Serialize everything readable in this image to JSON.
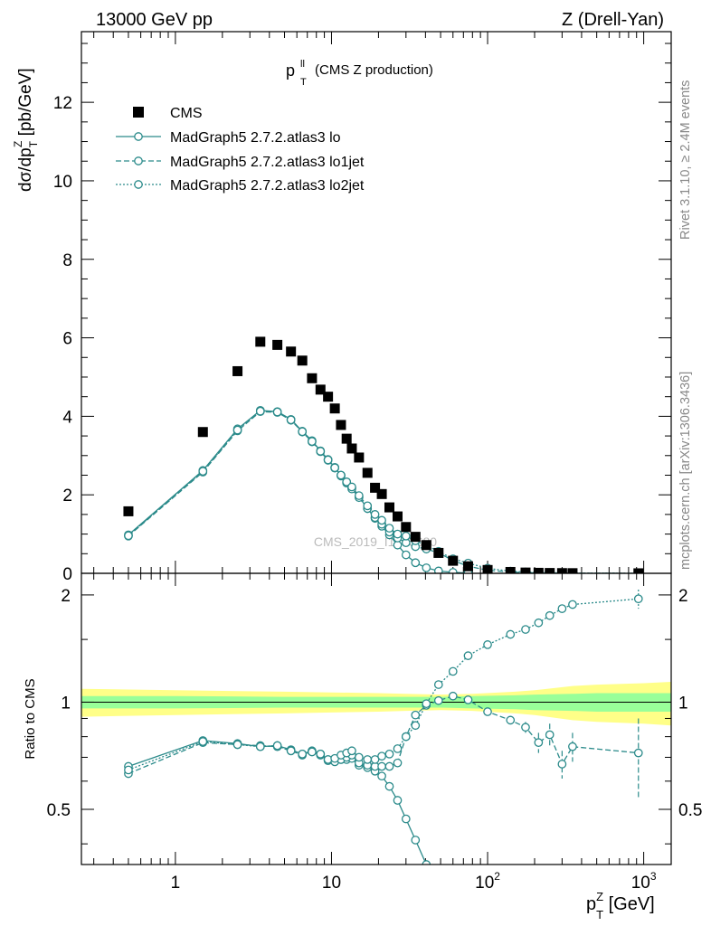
{
  "header": {
    "energy": "13000 GeV pp",
    "process": "Z (Drell-Yan)",
    "rivet": "Rivet 3.1.10, ≥ 2.4M events",
    "source": "mcplots.cern.ch [arXiv:1306.3436]",
    "watermark": "CMS_2019_I1753680"
  },
  "colors": {
    "data": "#000000",
    "mc": "#2a8a8a",
    "band_outer": "#ffff88",
    "band_inner": "#99ff99"
  },
  "chart_data": [
    {
      "type": "scatter",
      "title": "p_T^ll (CMS Z production)",
      "title_main": "p",
      "title_sup": "ll",
      "title_sub": "T",
      "title_rest": "(CMS Z production)",
      "ylabel": "dσ/dp_T^Z [pb/GeV]",
      "xscale": "log",
      "xlim": [
        0.25,
        1500
      ],
      "ylim": [
        0,
        13.8
      ],
      "yticks": [
        0,
        2,
        4,
        6,
        8,
        10,
        12
      ],
      "legend_position": "top-left",
      "series": [
        {
          "name": "CMS",
          "style": "square",
          "x": [
            0.5,
            1.5,
            2.5,
            3.5,
            4.5,
            5.5,
            6.5,
            7.5,
            8.5,
            9.5,
            10.5,
            11.5,
            12.5,
            13.5,
            15,
            17,
            19,
            21,
            23.5,
            26.5,
            30,
            34.5,
            40.5,
            48.5,
            60,
            75,
            100,
            140,
            175,
            212,
            250,
            300,
            350,
            925
          ],
          "y": [
            1.58,
            3.6,
            5.15,
            5.9,
            5.82,
            5.65,
            5.42,
            4.97,
            4.68,
            4.5,
            4.2,
            3.78,
            3.43,
            3.18,
            2.95,
            2.56,
            2.18,
            2.02,
            1.68,
            1.45,
            1.18,
            0.93,
            0.72,
            0.52,
            0.32,
            0.18,
            0.085,
            0.035,
            0.02,
            0.013,
            0.009,
            0.006,
            0.004,
            0.0008
          ]
        },
        {
          "name": "MadGraph5 2.7.2.atlas3 lo",
          "style": "solid",
          "x": [
            0.5,
            1.5,
            2.5,
            3.5,
            4.5,
            5.5,
            6.5,
            7.5,
            8.5,
            9.5,
            10.5,
            11.5,
            12.5,
            13.5,
            15,
            17,
            19,
            21,
            23.5,
            26.5,
            30,
            34.5,
            40.5,
            48.5,
            60,
            75
          ],
          "y": [
            0.98,
            2.62,
            3.68,
            4.15,
            4.12,
            3.92,
            3.62,
            3.38,
            3.12,
            2.9,
            2.7,
            2.5,
            2.32,
            2.18,
            1.95,
            1.65,
            1.4,
            1.2,
            0.98,
            0.72,
            0.47,
            0.27,
            0.14,
            0.06,
            0.025,
            0.008
          ]
        },
        {
          "name": "MadGraph5 2.7.2.atlas3 lo1jet",
          "style": "dashed",
          "x": [
            0.5,
            1.5,
            2.5,
            3.5,
            4.5,
            5.5,
            6.5,
            7.5,
            8.5,
            9.5,
            10.5,
            11.5,
            12.5,
            13.5,
            15,
            17,
            19,
            21,
            23.5,
            26.5,
            30,
            34.5,
            40.5,
            48.5,
            60,
            75,
            100,
            140,
            175,
            212,
            250,
            300,
            350,
            925
          ],
          "y": [
            0.95,
            2.58,
            3.63,
            4.12,
            4.1,
            3.9,
            3.6,
            3.35,
            3.1,
            2.88,
            2.68,
            2.48,
            2.3,
            2.15,
            1.93,
            1.65,
            1.42,
            1.25,
            1.05,
            0.9,
            0.78,
            0.68,
            0.62,
            0.52,
            0.33,
            0.18,
            0.08,
            0.031,
            0.017,
            0.01,
            0.0073,
            0.004,
            0.003,
            0.0006
          ]
        },
        {
          "name": "MadGraph5 2.7.2.atlas3 lo2jet",
          "style": "dotted",
          "x": [
            0.5,
            1.5,
            2.5,
            3.5,
            4.5,
            5.5,
            6.5,
            7.5,
            8.5,
            9.5,
            10.5,
            11.5,
            12.5,
            13.5,
            15,
            17,
            19,
            21,
            23.5,
            26.5,
            30,
            34.5,
            40.5,
            48.5,
            60,
            75,
            100,
            140,
            175,
            212,
            250,
            300,
            350,
            925
          ],
          "y": [
            0.96,
            2.6,
            3.65,
            4.13,
            4.11,
            3.91,
            3.61,
            3.36,
            3.11,
            2.89,
            2.69,
            2.5,
            2.33,
            2.2,
            1.98,
            1.72,
            1.5,
            1.35,
            1.15,
            1.0,
            0.95,
            0.83,
            0.71,
            0.56,
            0.37,
            0.26,
            0.13,
            0.055,
            0.035,
            0.024,
            0.017,
            0.011,
            0.0075,
            0.0015
          ]
        }
      ]
    },
    {
      "type": "scatter",
      "title": "",
      "xlabel": "p_T^Z [GeV]",
      "ylabel": "Ratio to CMS",
      "xscale": "log",
      "xlim": [
        0.25,
        1500
      ],
      "ylim": [
        0.35,
        2.3
      ],
      "yticks": [
        0.5,
        1,
        2
      ],
      "ytick_labels": [
        "0.5",
        "1",
        "2"
      ],
      "xticks": [
        1,
        10,
        100,
        1000
      ],
      "xtick_labels": [
        {
          "base": "1",
          "exp": ""
        },
        {
          "base": "10",
          "exp": ""
        },
        {
          "base": "10",
          "exp": "2"
        },
        {
          "base": "10",
          "exp": "3"
        }
      ],
      "reference_line": 1,
      "band_x": [
        0.25,
        1,
        5,
        10,
        20,
        30,
        50,
        80,
        150,
        200,
        350,
        500,
        1000,
        1500
      ],
      "band_inner_half": [
        0.04,
        0.04,
        0.035,
        0.035,
        0.035,
        0.035,
        0.035,
        0.04,
        0.045,
        0.05,
        0.055,
        0.06,
        0.06,
        0.06
      ],
      "band_outer_half": [
        0.09,
        0.08,
        0.07,
        0.065,
        0.06,
        0.055,
        0.05,
        0.055,
        0.07,
        0.08,
        0.11,
        0.12,
        0.13,
        0.14
      ],
      "series": [
        {
          "name": "MadGraph5 2.7.2.atlas3 lo",
          "style": "solid",
          "x": [
            0.5,
            1.5,
            2.5,
            3.5,
            4.5,
            5.5,
            6.5,
            7.5,
            8.5,
            9.5,
            10.5,
            11.5,
            12.5,
            13.5,
            15,
            17,
            19,
            21,
            23.5,
            26.5,
            30,
            34.5,
            40.5
          ],
          "y": [
            0.66,
            0.78,
            0.765,
            0.75,
            0.755,
            0.735,
            0.715,
            0.73,
            0.715,
            0.69,
            0.685,
            0.69,
            0.69,
            0.695,
            0.665,
            0.655,
            0.64,
            0.62,
            0.58,
            0.53,
            0.47,
            0.41,
            0.35
          ],
          "err": []
        },
        {
          "name": "MadGraph5 2.7.2.atlas3 lo1jet",
          "style": "dashed",
          "x": [
            0.5,
            1.5,
            2.5,
            3.5,
            4.5,
            5.5,
            6.5,
            7.5,
            8.5,
            9.5,
            10.5,
            11.5,
            12.5,
            13.5,
            15,
            17,
            19,
            21,
            23.5,
            26.5,
            30,
            34.5,
            40.5,
            48.5,
            60,
            75,
            100,
            140,
            175,
            212,
            250,
            300,
            350,
            925
          ],
          "y": [
            0.63,
            0.77,
            0.76,
            0.755,
            0.75,
            0.73,
            0.71,
            0.725,
            0.71,
            0.685,
            0.68,
            0.69,
            0.7,
            0.71,
            0.675,
            0.665,
            0.66,
            0.66,
            0.66,
            0.675,
            0.8,
            0.92,
            0.98,
            1.01,
            1.04,
            1.015,
            0.94,
            0.89,
            0.85,
            0.77,
            0.81,
            0.67,
            0.75,
            0.72
          ],
          "err": [
            0,
            0,
            0,
            0,
            0,
            0,
            0,
            0,
            0,
            0,
            0,
            0,
            0,
            0,
            0,
            0,
            0,
            0,
            0,
            0,
            0,
            0,
            0,
            0,
            0.01,
            0.01,
            0.015,
            0.02,
            0.03,
            0.05,
            0.06,
            0.06,
            0.07,
            0.18
          ]
        },
        {
          "name": "MadGraph5 2.7.2.atlas3 lo2jet",
          "style": "dotted",
          "x": [
            0.5,
            1.5,
            2.5,
            3.5,
            4.5,
            5.5,
            6.5,
            7.5,
            8.5,
            9.5,
            10.5,
            11.5,
            12.5,
            13.5,
            15,
            17,
            19,
            21,
            23.5,
            26.5,
            30,
            34.5,
            40.5,
            48.5,
            60,
            75,
            100,
            140,
            175,
            212,
            250,
            300,
            350,
            925
          ],
          "y": [
            0.645,
            0.775,
            0.76,
            0.75,
            0.755,
            0.73,
            0.715,
            0.725,
            0.715,
            0.69,
            0.695,
            0.71,
            0.72,
            0.73,
            0.7,
            0.69,
            0.69,
            0.705,
            0.715,
            0.74,
            0.8,
            0.86,
            0.99,
            1.12,
            1.22,
            1.35,
            1.45,
            1.55,
            1.6,
            1.67,
            1.75,
            1.83,
            1.88,
            1.95
          ],
          "err": [
            0,
            0,
            0,
            0,
            0,
            0,
            0,
            0,
            0,
            0,
            0,
            0,
            0,
            0,
            0,
            0,
            0,
            0,
            0,
            0,
            0,
            0,
            0,
            0,
            0.01,
            0.01,
            0.01,
            0.015,
            0.02,
            0.03,
            0.03,
            0.04,
            0.04,
            0.12
          ]
        }
      ]
    }
  ]
}
